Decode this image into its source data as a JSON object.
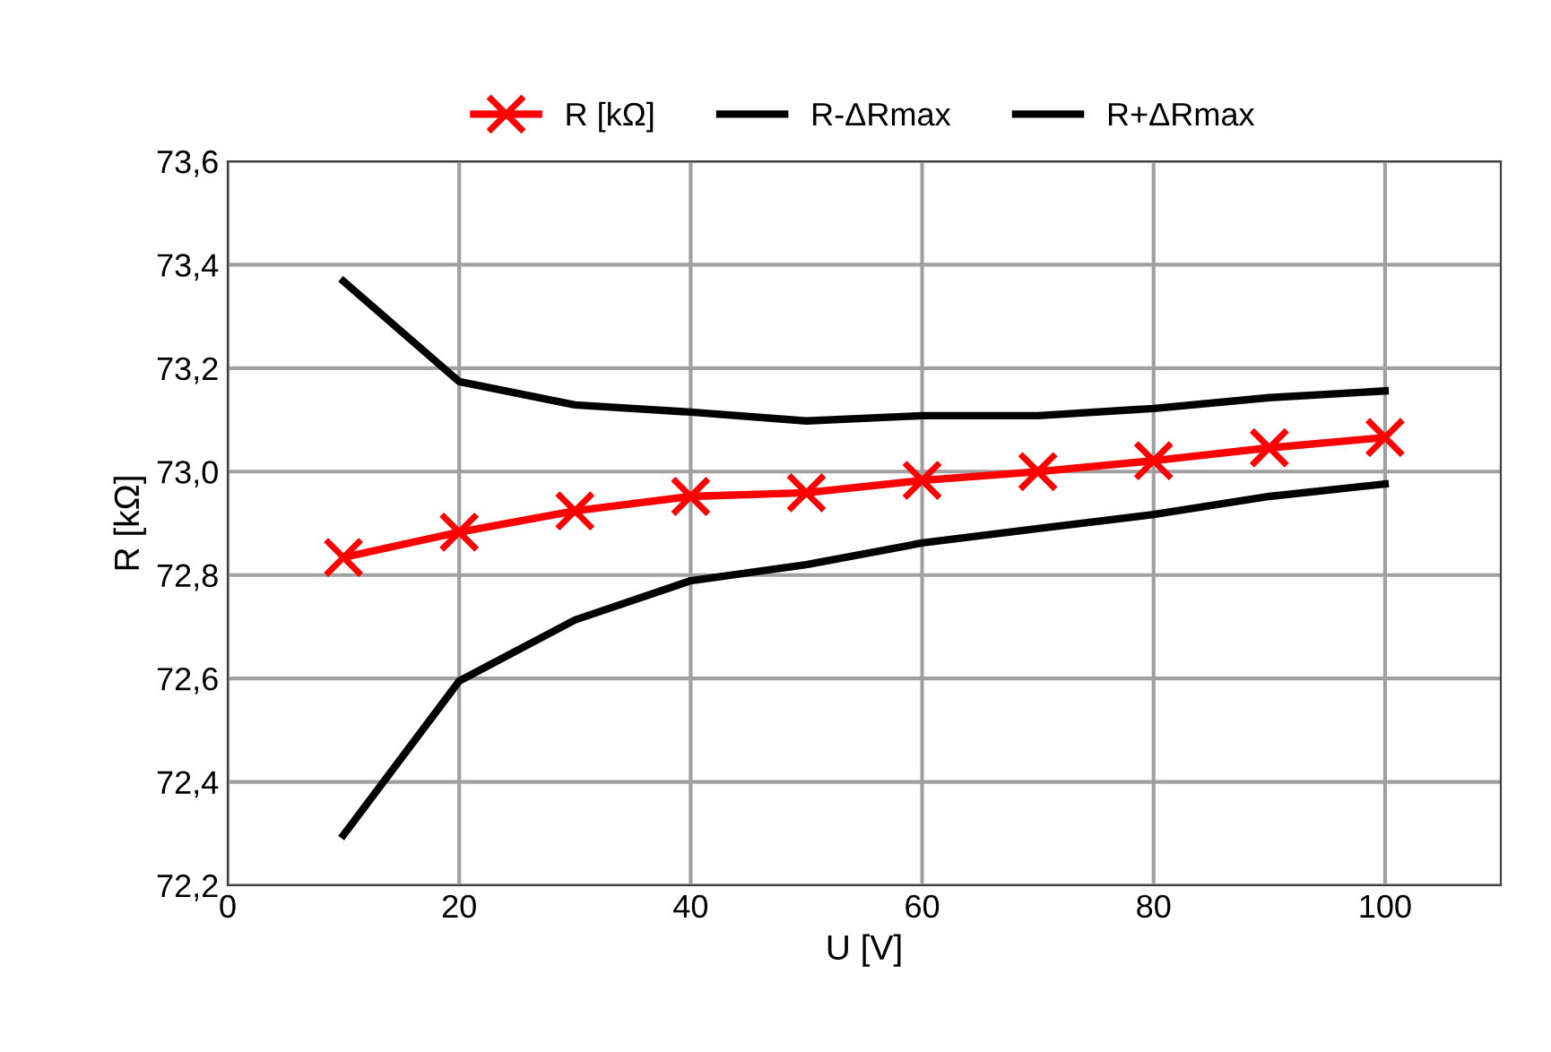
{
  "chart_data": {
    "type": "line",
    "xlabel": "U [V]",
    "ylabel": "R [kΩ]",
    "x": [
      10,
      20,
      30,
      40,
      50,
      60,
      70,
      80,
      90,
      100
    ],
    "series": [
      {
        "name": "R [kΩ]",
        "color": "#ff0000",
        "marker": "cross",
        "values": [
          72.834,
          72.883,
          72.924,
          72.952,
          72.959,
          72.983,
          73.0,
          73.021,
          73.046,
          73.066
        ]
      },
      {
        "name": "R-ΔRmax",
        "color": "#000000",
        "marker": "none",
        "values": [
          73.368,
          73.174,
          73.129,
          73.115,
          73.098,
          73.108,
          73.108,
          73.122,
          73.143,
          73.156
        ]
      },
      {
        "name": "R+ΔRmax",
        "color": "#000000",
        "marker": "none",
        "values": [
          72.297,
          72.595,
          72.713,
          72.789,
          72.82,
          72.862,
          72.89,
          72.917,
          72.952,
          72.976
        ]
      }
    ],
    "xlim": [
      0,
      110
    ],
    "xticks": [
      0,
      20,
      40,
      60,
      80,
      100
    ],
    "ylim": [
      72.2,
      73.6
    ],
    "yticks": [
      {
        "value": 72.2,
        "label": "72,2"
      },
      {
        "value": 72.4,
        "label": "72,4"
      },
      {
        "value": 72.6,
        "label": "72,6"
      },
      {
        "value": 72.8,
        "label": "72,8"
      },
      {
        "value": 73.0,
        "label": "73,0"
      },
      {
        "value": 73.2,
        "label": "73,2"
      },
      {
        "value": 73.4,
        "label": "73,4"
      },
      {
        "value": 73.6,
        "label": "73,6"
      }
    ],
    "grid": true,
    "legend": "top",
    "line_style": "solid"
  }
}
